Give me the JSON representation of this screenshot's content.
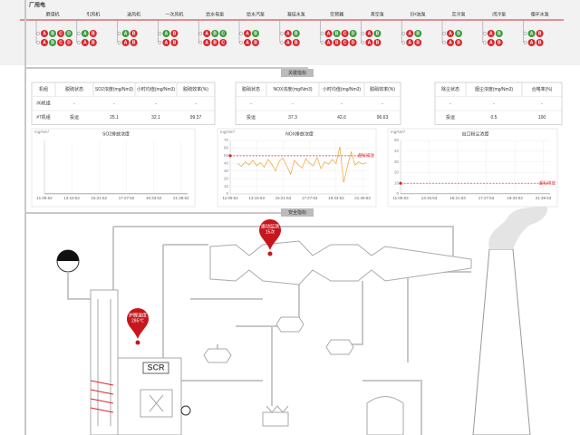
{
  "power": {
    "title": "厂用电",
    "units": [
      {
        "name": "磨煤机",
        "rows": [
          [
            {
              "l": "A",
              "s": 0
            },
            {
              "l": "B",
              "s": 1
            },
            {
              "l": "C",
              "s": 0
            },
            {
              "l": "D",
              "s": 1
            }
          ],
          [
            {
              "l": "A",
              "s": 0
            },
            {
              "l": "B",
              "s": 1
            },
            {
              "l": "C",
              "s": 0
            },
            {
              "l": "D",
              "s": 0
            }
          ]
        ]
      },
      {
        "name": "引风机",
        "rows": [
          [
            {
              "l": "A",
              "s": 1
            },
            {
              "l": "B",
              "s": 0
            }
          ],
          [
            {
              "l": "A",
              "s": 0
            },
            {
              "l": "B",
              "s": 0
            }
          ]
        ]
      },
      {
        "name": "送风机",
        "rows": [
          [
            {
              "l": "A",
              "s": 1
            },
            {
              "l": "B",
              "s": 0
            }
          ],
          [
            {
              "l": "A",
              "s": 0
            },
            {
              "l": "B",
              "s": 0
            }
          ]
        ]
      },
      {
        "name": "一次风机",
        "rows": [
          [
            {
              "l": "A",
              "s": 1
            },
            {
              "l": "B",
              "s": 0
            }
          ],
          [
            {
              "l": "A",
              "s": 0
            },
            {
              "l": "B",
              "s": 0
            }
          ]
        ]
      },
      {
        "name": "给水电泵",
        "rows": [
          [
            {
              "l": "A",
              "s": 0
            },
            {
              "l": "B",
              "s": 1
            },
            {
              "l": "C",
              "s": 1
            }
          ],
          [
            {
              "l": "A",
              "s": 0
            },
            {
              "l": "B",
              "s": 0
            },
            {
              "l": "C",
              "s": 0
            }
          ]
        ]
      },
      {
        "name": "给水汽泵",
        "rows": [
          [
            {
              "l": "A",
              "s": 0
            },
            {
              "l": "B",
              "s": 1
            }
          ],
          [
            {
              "l": "A",
              "s": 0
            },
            {
              "l": "B",
              "s": 0
            }
          ]
        ]
      },
      {
        "name": "凝结水泵",
        "rows": [
          [
            {
              "l": "A",
              "s": 0
            },
            {
              "l": "B",
              "s": 1
            }
          ],
          [
            {
              "l": "A",
              "s": 0
            },
            {
              "l": "B",
              "s": 0
            }
          ]
        ]
      },
      {
        "name": "空预器",
        "rows": [
          [
            {
              "l": "A",
              "s": 0
            },
            {
              "l": "B",
              "s": 1
            },
            {
              "l": "C",
              "s": 0
            },
            {
              "l": "D",
              "s": 1
            }
          ],
          [
            {
              "l": "A",
              "s": 0
            },
            {
              "l": "B",
              "s": 0
            },
            {
              "l": "C",
              "s": 0
            },
            {
              "l": "D",
              "s": 0
            }
          ]
        ]
      },
      {
        "name": "真空泵",
        "rows": [
          [
            {
              "l": "A",
              "s": 0
            },
            {
              "l": "B",
              "s": 1
            }
          ],
          [
            {
              "l": "A",
              "s": 0
            },
            {
              "l": "B",
              "s": 0
            }
          ]
        ]
      },
      {
        "name": "EH油泵",
        "rows": [
          [
            {
              "l": "A",
              "s": 0
            },
            {
              "l": "B",
              "s": 1
            }
          ],
          [
            {
              "l": "A",
              "s": 0
            },
            {
              "l": "B",
              "s": 0
            }
          ]
        ]
      },
      {
        "name": "定冷泵",
        "rows": [
          [
            {
              "l": "A",
              "s": 0
            },
            {
              "l": "B",
              "s": 1
            }
          ],
          [
            {
              "l": "A",
              "s": 0
            },
            {
              "l": "B",
              "s": 0
            }
          ]
        ]
      },
      {
        "name": "闭冷泵",
        "rows": [
          [
            {
              "l": "A",
              "s": 0
            },
            {
              "l": "B",
              "s": 1
            }
          ],
          [
            {
              "l": "A",
              "s": 0
            },
            {
              "l": "B",
              "s": 0
            }
          ]
        ]
      },
      {
        "name": "循环水泵",
        "rows": [
          [
            {
              "l": "A",
              "s": 1
            },
            {
              "l": "B",
              "s": 0
            }
          ],
          [
            {
              "l": "A",
              "s": 0
            },
            {
              "l": "B",
              "s": 0
            }
          ]
        ]
      }
    ],
    "colors": {
      "on": "#3c9a3c",
      "off": "#d8262c"
    }
  },
  "sections": {
    "key": "关键指标",
    "safety": "安全指标"
  },
  "tables": [
    {
      "headers": [
        "机组",
        "脱硫状态",
        "SO2浓度(mg/Nm3)",
        "小时均值(mg/Nm3)",
        "脱硫效率(%)"
      ],
      "rows": [
        [
          "#6机组",
          "-",
          "-",
          "-",
          "-"
        ],
        [
          "#7机组",
          "投运",
          "25.1",
          "32.1",
          "99.37"
        ]
      ]
    },
    {
      "headers": [
        "脱硝状态",
        "NOX浓度(mg/Nm3)",
        "小时均值(mg/Nm3)",
        "脱硝效率(%)"
      ],
      "rows": [
        [
          "-",
          "-",
          "-",
          "-"
        ],
        [
          "投运",
          "37.3",
          "42.6",
          "96.63"
        ]
      ]
    },
    {
      "headers": [
        "除尘状态",
        "烟尘浓度(mg/Nm3)",
        "合格率(%)"
      ],
      "rows": [
        [
          "-",
          "-",
          "-"
        ],
        [
          "投运",
          "0.5",
          "100"
        ]
      ]
    }
  ],
  "chart_data": [
    {
      "type": "line",
      "title": "SO2排放浓度",
      "ylabel": "mg/Nm³",
      "xlim": [
        0,
        11
      ],
      "ylim": [
        0,
        50
      ],
      "yticks": [],
      "xticks": [
        {
          "value": 0,
          "label": "11:09:52"
        },
        {
          "value": 2.1,
          "label": "13:15:52"
        },
        {
          "value": 4.2,
          "label": "15:21:52"
        },
        {
          "value": 6.3,
          "label": "17:27:52"
        },
        {
          "value": 8.4,
          "label": "19:33:52"
        },
        {
          "value": 10.5,
          "label": "21:39:52"
        }
      ],
      "x": [
        0,
        11
      ],
      "series": [
        {
          "color": "#f0c020",
          "values": [
            0.5,
            0.5
          ]
        }
      ]
    },
    {
      "type": "line",
      "title": "NOX排放浓度",
      "ylabel": "mg/Nm³",
      "xlim": [
        0,
        11
      ],
      "ylim": [
        0,
        70
      ],
      "yticks": [
        0,
        10,
        20,
        30,
        40,
        50,
        60,
        70
      ],
      "xticks": [
        {
          "value": 0,
          "label": "11:09:53"
        },
        {
          "value": 2.1,
          "label": "13:15:53"
        },
        {
          "value": 4.2,
          "label": "15:21:53"
        },
        {
          "value": 6.3,
          "label": "17:27:53"
        },
        {
          "value": 8.4,
          "label": "19:33:53"
        },
        {
          "value": 10.5,
          "label": "21:39:53"
        }
      ],
      "x": [
        0.6,
        0.9,
        1.2,
        1.5,
        1.8,
        2.1,
        2.4,
        2.7,
        3.0,
        3.3,
        3.6,
        3.9,
        4.2,
        4.5,
        4.8,
        5.1,
        5.4,
        5.7,
        6.0,
        6.3,
        6.6,
        6.9,
        7.2,
        7.5,
        7.8,
        8.1,
        8.4,
        8.7,
        9.0,
        9.3,
        9.6,
        9.9,
        10.2,
        10.5,
        10.8
      ],
      "series": [
        {
          "color": "#f0a030",
          "values": [
            40,
            36,
            42,
            38,
            44,
            37,
            41,
            35,
            45,
            39,
            30,
            43,
            47,
            36,
            26,
            44,
            38,
            34,
            46,
            40,
            37,
            48,
            33,
            42,
            39,
            45,
            40,
            62,
            15,
            36,
            55,
            38,
            42,
            39,
            41
          ]
        }
      ],
      "limit": 50,
      "limit_label": "超标排放",
      "limit_color": "#d8262c"
    },
    {
      "type": "line",
      "title": "出口粉尘浓度",
      "ylabel": "mg/Nm³",
      "xlim": [
        0,
        11
      ],
      "ylim": [
        0,
        50
      ],
      "yticks": [
        0,
        10,
        20,
        30,
        40,
        50
      ],
      "xticks": [
        {
          "value": 0,
          "label": "11:09:53"
        },
        {
          "value": 2.1,
          "label": "13:15:53"
        },
        {
          "value": 4.2,
          "label": "15:21:53"
        },
        {
          "value": 6.3,
          "label": "17:27:53"
        },
        {
          "value": 8.4,
          "label": "19:33:53"
        },
        {
          "value": 10.5,
          "label": "21:39:53"
        }
      ],
      "x": [
        0,
        11
      ],
      "series": [
        {
          "color": "#f0c020",
          "values": [
            0.5,
            0.5
          ]
        }
      ],
      "limit": 10,
      "limit_label": "超标排放",
      "limit_color": "#d8262c"
    }
  ],
  "diagram": {
    "scr": "SCR",
    "pins": [
      {
        "title": "振动监测",
        "value": "15次"
      },
      {
        "title": "炉膛温度",
        "value": "285℃"
      }
    ]
  }
}
